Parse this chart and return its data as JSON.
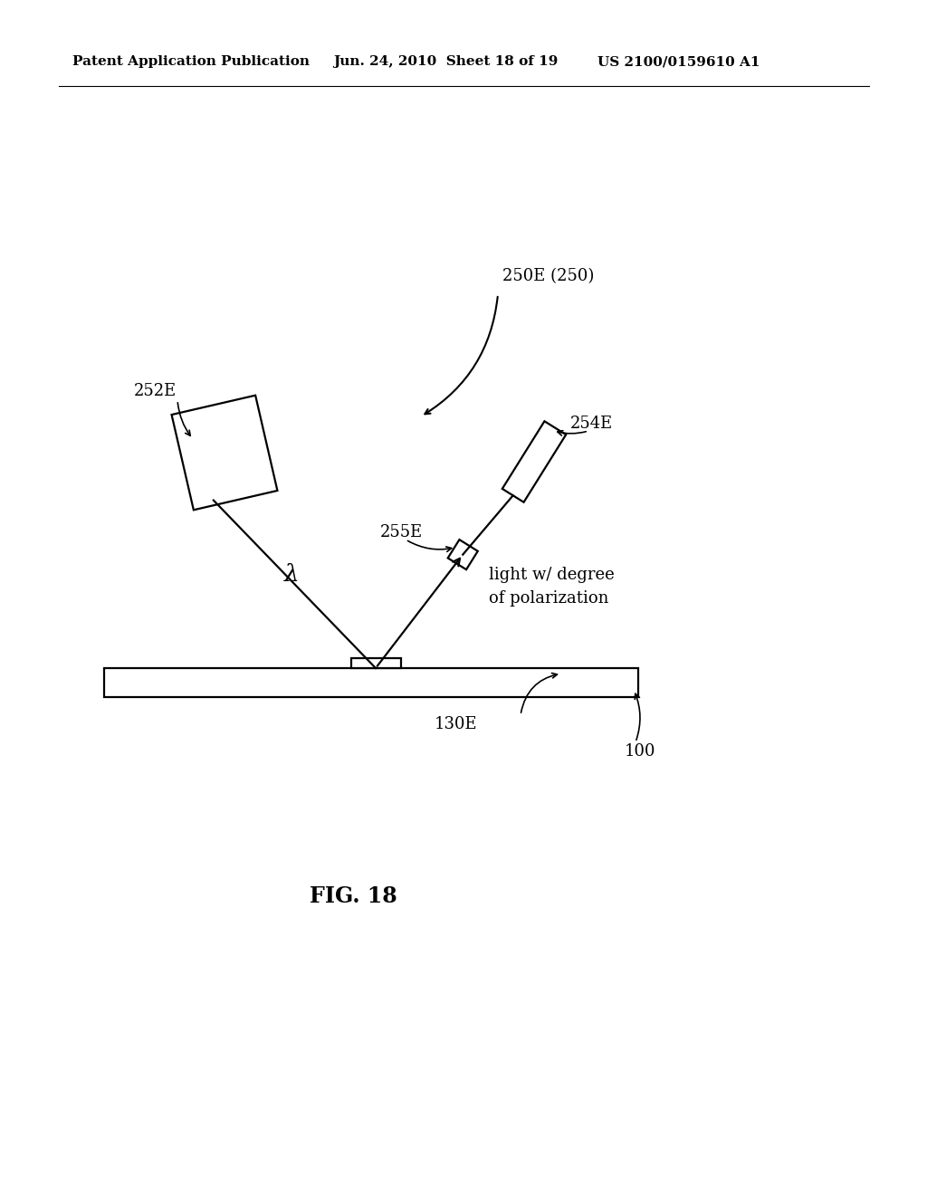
{
  "background_color": "#ffffff",
  "header_left": "Patent Application Publication",
  "header_mid": "Jun. 24, 2010  Sheet 18 of 19",
  "header_right": "US 2100/0159610 A1",
  "fig_label": "FIG. 18",
  "label_250E": "250E (250)",
  "label_252E": "252E",
  "label_254E": "254E",
  "label_255E": "255E",
  "label_130E": "130E",
  "label_100": "100",
  "label_lambda": "λ",
  "label_light": "light w/ degree\nof polarization",
  "lw": 1.6,
  "fs_header": 11,
  "fs_label": 13,
  "fs_fig": 17
}
